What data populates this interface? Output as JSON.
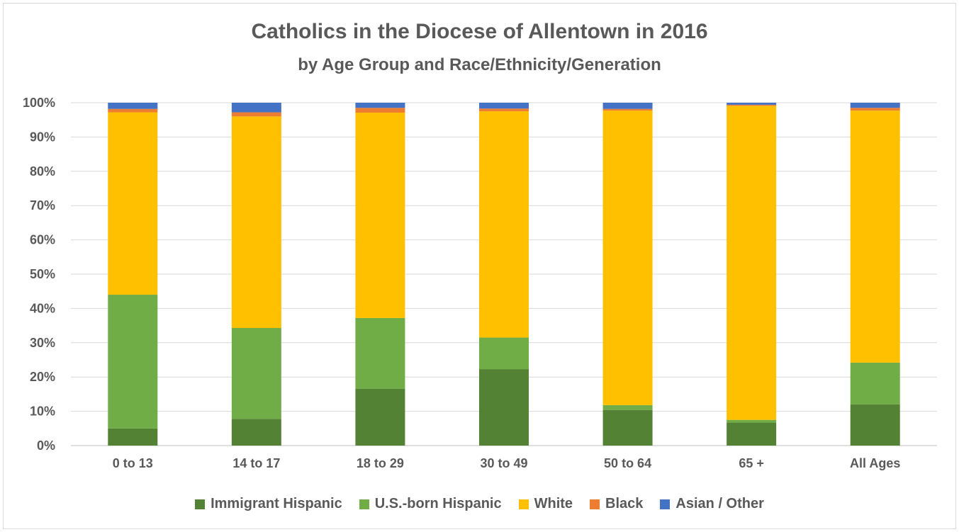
{
  "chart_data": {
    "type": "bar",
    "stacked": true,
    "title": "Catholics in the Diocese of Allentown in 2016",
    "subtitle": "by Age Group and Race/Ethnicity/Generation",
    "categories": [
      "0 to 13",
      "14 to 17",
      "18 to 29",
      "30 to 49",
      "50 to 64",
      "65 +",
      "All Ages"
    ],
    "y_ticks": [
      "0%",
      "10%",
      "20%",
      "30%",
      "40%",
      "50%",
      "60%",
      "70%",
      "80%",
      "90%",
      "100%"
    ],
    "ylim": [
      0,
      100
    ],
    "grid": true,
    "legend_position": "bottom",
    "series": [
      {
        "name": "Immigrant Hispanic",
        "color": "#548235",
        "values": [
          5.0,
          7.8,
          16.6,
          22.3,
          10.4,
          6.7,
          12.0
        ]
      },
      {
        "name": "U.S.-born Hispanic",
        "color": "#70AD47",
        "values": [
          39.0,
          26.5,
          20.6,
          9.2,
          1.4,
          0.8,
          12.2
        ]
      },
      {
        "name": "White",
        "color": "#FFC000",
        "values": [
          53.2,
          61.7,
          59.9,
          66.0,
          85.9,
          91.6,
          73.5
        ]
      },
      {
        "name": "Black",
        "color": "#ED7D31",
        "values": [
          1.0,
          1.2,
          1.4,
          0.8,
          0.5,
          0.3,
          0.8
        ]
      },
      {
        "name": "Asian / Other",
        "color": "#4472C4",
        "values": [
          1.8,
          2.8,
          1.5,
          1.7,
          1.8,
          0.6,
          1.5
        ]
      }
    ]
  }
}
